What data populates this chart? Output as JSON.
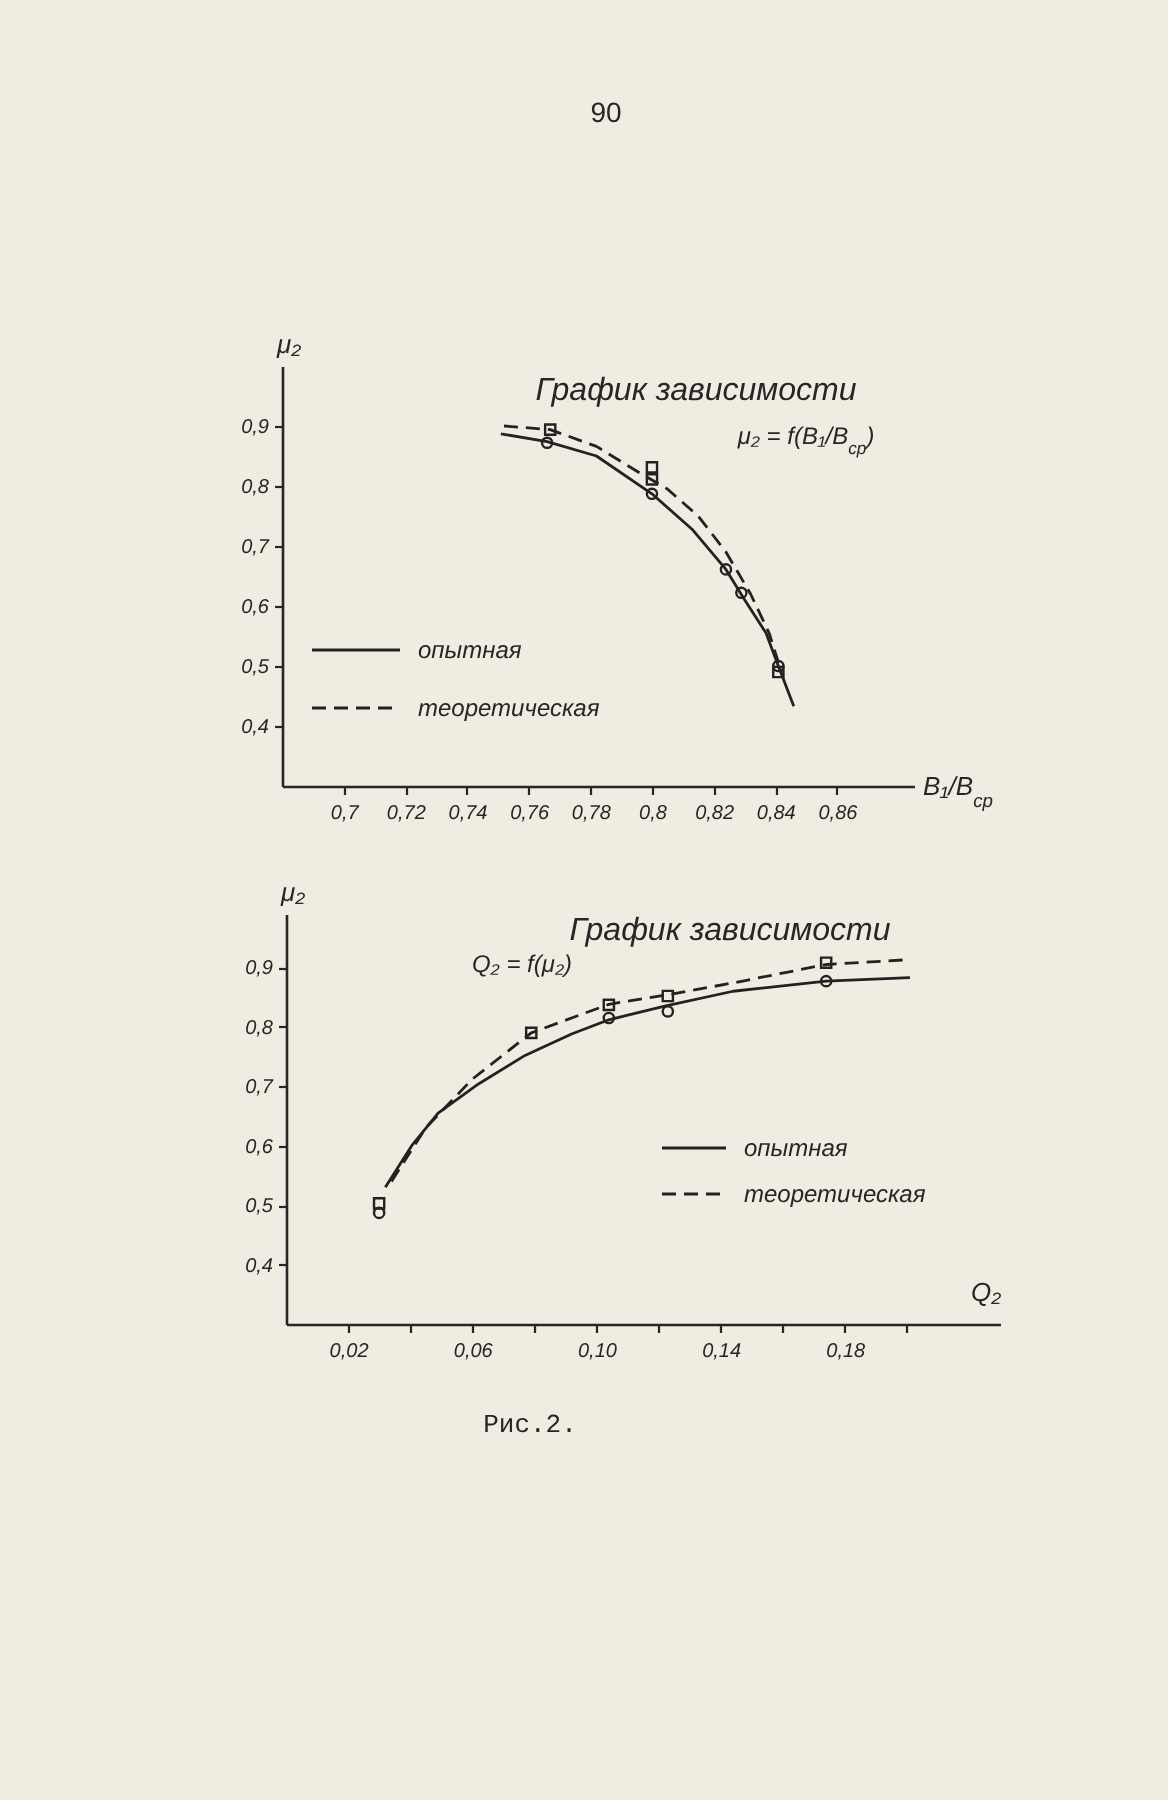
{
  "chart_data": [
    {
      "type": "line",
      "title": "График зависимости",
      "subtitle": "μ₂ = f(B₁/B$_{ср}$)",
      "xlabel": "B₁/B$_{ср}$",
      "ylabel": "μ₂",
      "annotations": [
        "90"
      ],
      "legend": "bottom left",
      "xlim": [
        0.68,
        0.885
      ],
      "ylim": [
        0.3,
        1.0
      ],
      "xticks": [
        {
          "value": 0.7,
          "label": "0,7"
        },
        {
          "value": 0.72,
          "label": "0,72"
        },
        {
          "value": 0.74,
          "label": "0,74"
        },
        {
          "value": 0.76,
          "label": "0,76"
        },
        {
          "value": 0.78,
          "label": "0,78"
        },
        {
          "value": 0.8,
          "label": "0,8"
        },
        {
          "value": 0.82,
          "label": "0,82"
        },
        {
          "value": 0.84,
          "label": "0,84"
        },
        {
          "value": 0.86,
          "label": "0,86"
        }
      ],
      "yticks": [
        {
          "value": 0.4,
          "label": "0,4"
        },
        {
          "value": 0.5,
          "label": "0,5"
        },
        {
          "value": 0.6,
          "label": "0,6"
        },
        {
          "value": 0.7,
          "label": "0,7"
        },
        {
          "value": 0.8,
          "label": "0,8"
        },
        {
          "value": 0.9,
          "label": "0,9"
        }
      ],
      "series": [
        {
          "name": "опытная",
          "color": "#222222",
          "line_style": "solid",
          "x": [
            0.751,
            0.766,
            0.782,
            0.8,
            0.813,
            0.824,
            0.83,
            0.837,
            0.841,
            0.846
          ],
          "values": [
            0.887,
            0.874,
            0.85,
            0.787,
            0.728,
            0.661,
            0.611,
            0.555,
            0.5,
            0.433
          ]
        },
        {
          "name": "теоретическая",
          "color": "#222222",
          "line_style": "dashed",
          "x": [
            0.752,
            0.767,
            0.782,
            0.795,
            0.805,
            0.815,
            0.824,
            0.832,
            0.838,
            0.842
          ],
          "values": [
            0.9,
            0.894,
            0.866,
            0.825,
            0.795,
            0.75,
            0.69,
            0.62,
            0.555,
            0.49
          ]
        },
        {
          "type": "scatter",
          "color": "#222222",
          "marker": "circle",
          "x": [
            0.766,
            0.8,
            0.824,
            0.829,
            0.841
          ],
          "values": [
            0.872,
            0.787,
            0.661,
            0.622,
            0.5
          ]
        },
        {
          "type": "scatter",
          "color": "#222222",
          "marker": "square",
          "x": [
            0.767,
            0.8,
            0.8,
            0.841
          ],
          "values": [
            0.894,
            0.831,
            0.811,
            0.49
          ]
        }
      ]
    },
    {
      "type": "line",
      "title": "График зависимости",
      "subtitle": "Q₂ = f(μ₂)",
      "xlabel": "Q₂",
      "ylabel": "μ₂",
      "annotations": [
        "Рис.2."
      ],
      "legend": "bottom right",
      "xlim": [
        0,
        0.23
      ],
      "ylim": [
        0.3,
        0.99
      ],
      "xticks": [
        {
          "value": 0.02,
          "label": "0,02"
        },
        {
          "value": 0.04,
          "label": null
        },
        {
          "value": 0.06,
          "label": "0,06"
        },
        {
          "value": 0.08,
          "label": null
        },
        {
          "value": 0.1,
          "label": "0,10"
        },
        {
          "value": 0.12,
          "label": null
        },
        {
          "value": 0.14,
          "label": "0,14"
        },
        {
          "value": 0.16,
          "label": null
        },
        {
          "value": 0.18,
          "label": "0,18"
        },
        {
          "value": 0.2,
          "label": null
        }
      ],
      "yticks": [
        {
          "value": 0.4,
          "label": "0,4"
        },
        {
          "value": 0.5,
          "label": "0,5"
        },
        {
          "value": 0.6,
          "label": "0,6"
        },
        {
          "value": 0.7,
          "label": "0,7"
        },
        {
          "value": 0.8,
          "label": "0,8"
        },
        {
          "value": 0.9,
          "label": "0,9"
        }
      ],
      "series": [
        {
          "name": "опытная",
          "color": "#222222",
          "line_style": "solid",
          "x": [
            0.032,
            0.0405,
            0.049,
            0.062,
            0.077,
            0.092,
            0.104,
            0.122,
            0.144,
            0.174,
            0.201
          ],
          "values": [
            0.53,
            0.6,
            0.655,
            0.704,
            0.752,
            0.788,
            0.812,
            0.835,
            0.86,
            0.877,
            0.883
          ]
        },
        {
          "name": "теоретическая",
          "color": "#222222",
          "line_style": "dashed",
          "x": [
            0.034,
            0.045,
            0.06,
            0.079,
            0.104,
            0.124,
            0.144,
            0.174,
            0.2
          ],
          "values": [
            0.54,
            0.63,
            0.712,
            0.79,
            0.838,
            0.855,
            0.874,
            0.905,
            0.913
          ]
        },
        {
          "type": "scatter",
          "color": "#222222",
          "marker": "circle",
          "x": [
            0.03,
            0.104,
            0.123,
            0.174
          ],
          "values": [
            0.487,
            0.815,
            0.826,
            0.877
          ]
        },
        {
          "type": "scatter",
          "color": "#222222",
          "marker": "square",
          "x": [
            0.03,
            0.079,
            0.104,
            0.123,
            0.174
          ],
          "values": [
            0.503,
            0.79,
            0.837,
            0.852,
            0.908
          ]
        }
      ]
    }
  ]
}
